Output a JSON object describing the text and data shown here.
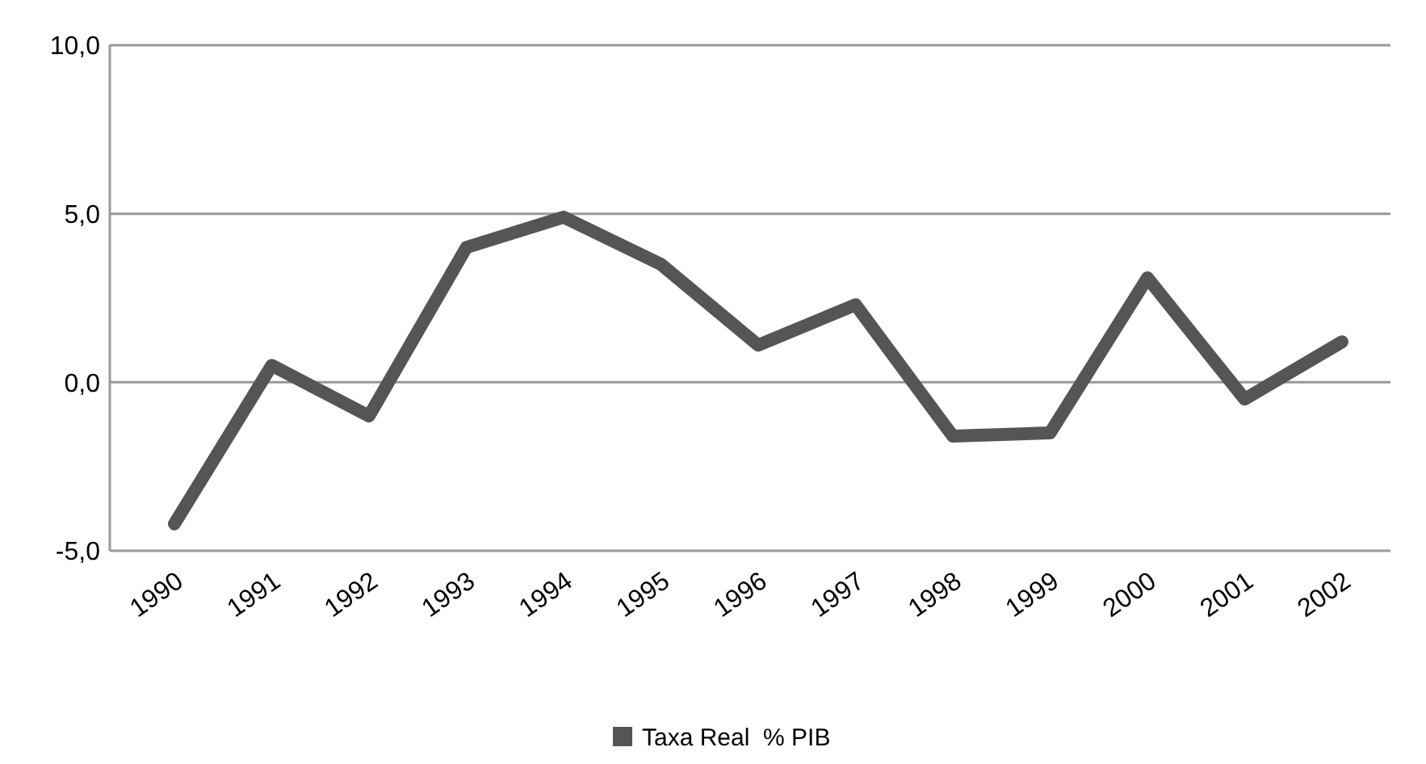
{
  "chart_data": {
    "type": "line",
    "categories": [
      "1990",
      "1991",
      "1992",
      "1993",
      "1994",
      "1995",
      "1996",
      "1997",
      "1998",
      "1999",
      "2000",
      "2001",
      "2002"
    ],
    "series": [
      {
        "name": "Taxa Real  % PIB",
        "color": "#555555",
        "values": [
          -4.2,
          0.5,
          -1.0,
          4.0,
          4.9,
          3.5,
          1.1,
          2.3,
          -1.6,
          -1.5,
          3.1,
          -0.5,
          1.2
        ]
      }
    ],
    "ylim": [
      -5,
      10
    ],
    "yticks": [
      {
        "value": -5,
        "label": "-5,0"
      },
      {
        "value": 0,
        "label": "0,0"
      },
      {
        "value": 5,
        "label": "5,0"
      },
      {
        "value": 10,
        "label": "10,0"
      }
    ],
    "grid": "y",
    "legend": "bottom",
    "marker": "none",
    "line_style": "solid"
  }
}
